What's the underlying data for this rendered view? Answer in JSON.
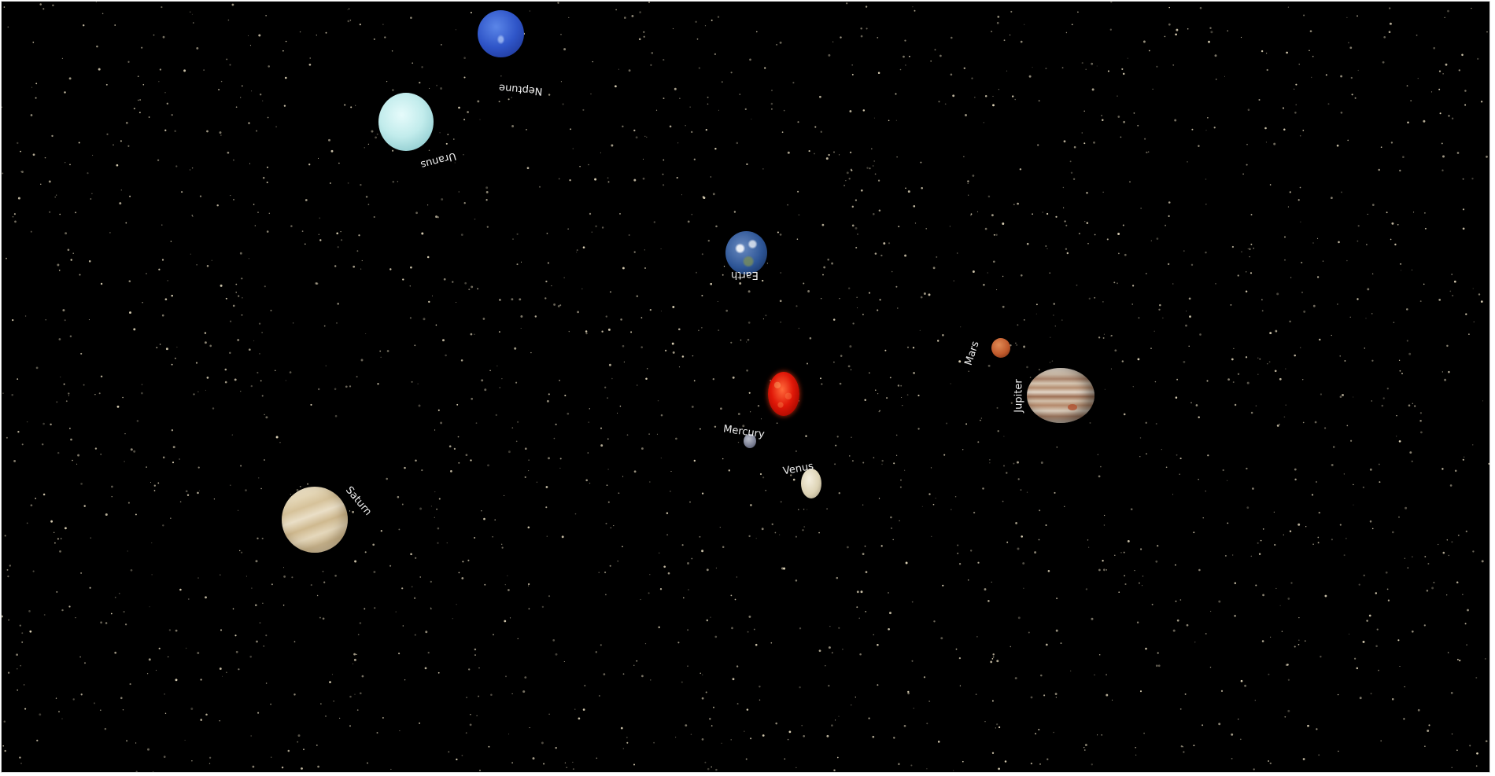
{
  "scene": {
    "background": "#000000",
    "star_color": "#f2e6c8"
  },
  "sun": {
    "icon": "sun-icon",
    "color": "#e01808"
  },
  "planets": [
    {
      "name": "Mercury",
      "icon": "mercury-icon",
      "color": "#7e8296"
    },
    {
      "name": "Venus",
      "icon": "venus-icon",
      "color": "#ddd3b5"
    },
    {
      "name": "Earth",
      "icon": "earth-icon",
      "color": "#2d5596"
    },
    {
      "name": "Mars",
      "icon": "mars-icon",
      "color": "#c05a2c"
    },
    {
      "name": "Jupiter",
      "icon": "jupiter-icon",
      "color": "#b68f72"
    },
    {
      "name": "Saturn",
      "icon": "saturn-icon",
      "color": "#e4d6b6"
    },
    {
      "name": "Uranus",
      "icon": "uranus-icon",
      "color": "#c2ecec"
    },
    {
      "name": "Neptune",
      "icon": "neptune-icon",
      "color": "#2f55c8"
    }
  ]
}
